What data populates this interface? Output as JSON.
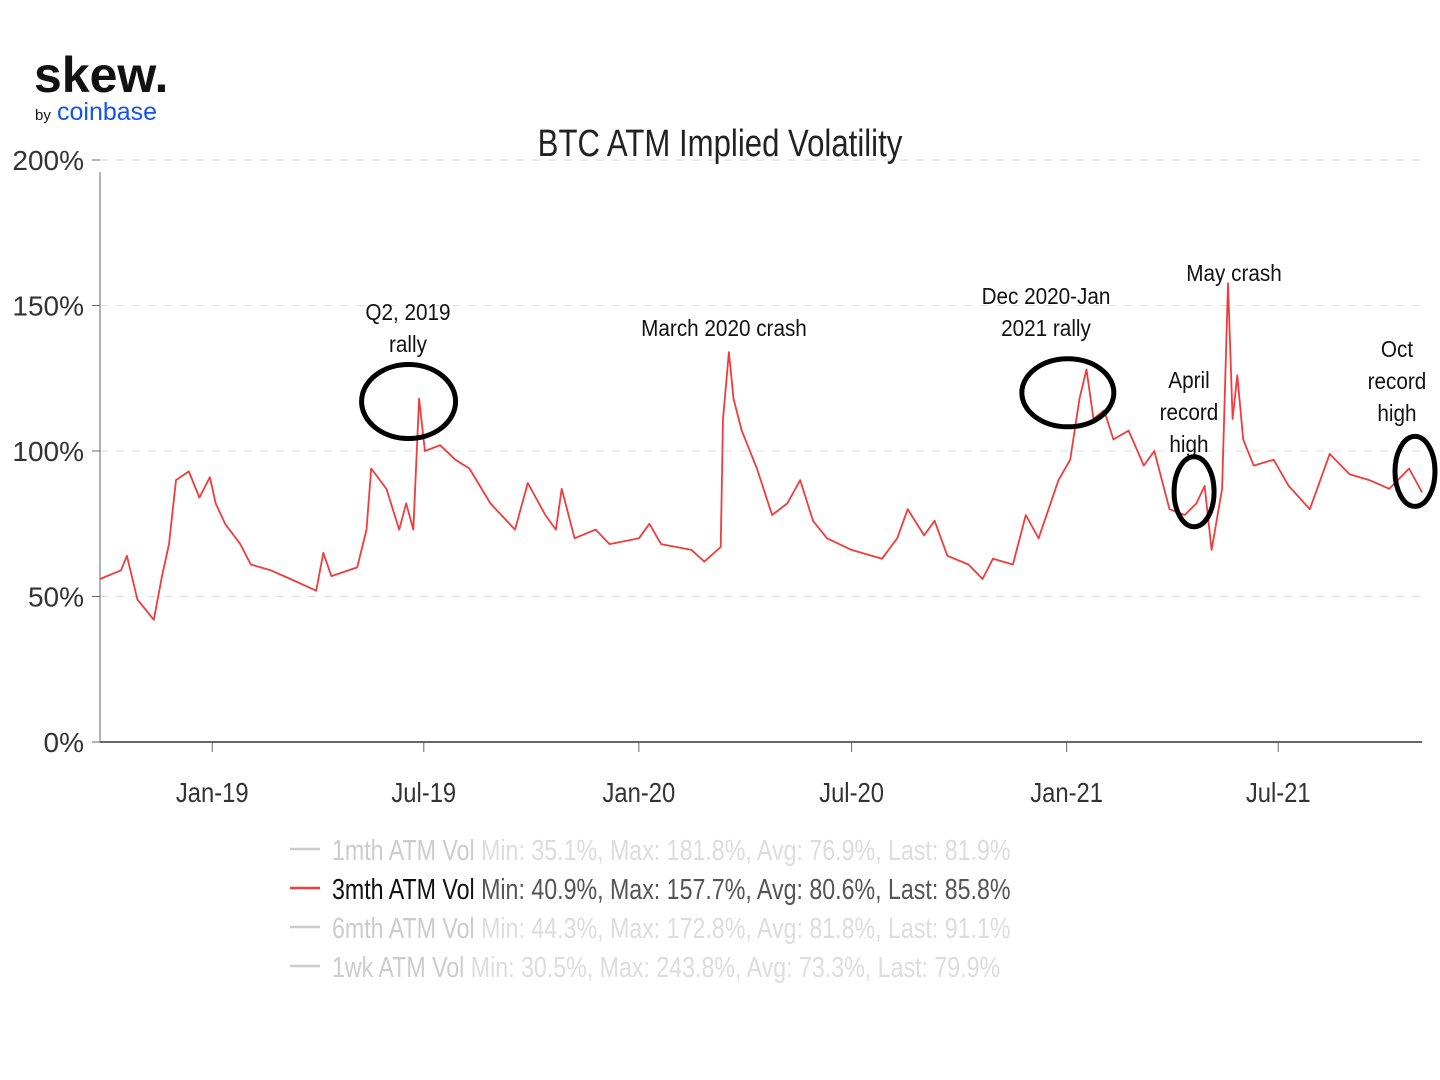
{
  "logo": {
    "brand": "skew.",
    "by": "by",
    "parent": "coinbase",
    "dot_color": "#f2a900",
    "parent_color": "#1652f0"
  },
  "chart_data": {
    "type": "line",
    "title": "BTC ATM Implied Volatility",
    "ylim": [
      0,
      200
    ],
    "yticks": [
      0,
      50,
      100,
      150,
      200
    ],
    "ytick_labels": [
      "0%",
      "50%",
      "100%",
      "150%",
      "200%"
    ],
    "xlim": [
      "2018-09-27",
      "2021-11-01"
    ],
    "xticks": [
      "2019-01-01",
      "2019-07-01",
      "2020-01-01",
      "2020-07-01",
      "2021-01-01",
      "2021-07-01"
    ],
    "xtick_labels": [
      "Jan-19",
      "Jul-19",
      "Jan-20",
      "Jul-20",
      "Jan-21",
      "Jul-21"
    ],
    "grid": "horizontal dashed",
    "legend_placement": "bottom",
    "line_color": "#f03c3c",
    "series": [
      {
        "name": "3mth ATM Vol",
        "points": [
          [
            "2018-09-27",
            56
          ],
          [
            "2018-10-15",
            59
          ],
          [
            "2018-10-20",
            64
          ],
          [
            "2018-10-29",
            49
          ],
          [
            "2018-11-12",
            42
          ],
          [
            "2018-11-19",
            57
          ],
          [
            "2018-11-25",
            68
          ],
          [
            "2018-12-01",
            90
          ],
          [
            "2018-12-12",
            93
          ],
          [
            "2018-12-21",
            84
          ],
          [
            "2018-12-30",
            91
          ],
          [
            "2019-01-04",
            82
          ],
          [
            "2019-01-12",
            75
          ],
          [
            "2019-01-25",
            68
          ],
          [
            "2019-02-03",
            61
          ],
          [
            "2019-02-20",
            59
          ],
          [
            "2019-03-09",
            56
          ],
          [
            "2019-03-31",
            52
          ],
          [
            "2019-04-06",
            65
          ],
          [
            "2019-04-13",
            57
          ],
          [
            "2019-05-05",
            60
          ],
          [
            "2019-05-13",
            73
          ],
          [
            "2019-05-17",
            94
          ],
          [
            "2019-05-30",
            87
          ],
          [
            "2019-06-10",
            73
          ],
          [
            "2019-06-16",
            82
          ],
          [
            "2019-06-22",
            73
          ],
          [
            "2019-06-27",
            118
          ],
          [
            "2019-07-02",
            100
          ],
          [
            "2019-07-15",
            102
          ],
          [
            "2019-07-28",
            97
          ],
          [
            "2019-08-09",
            94
          ],
          [
            "2019-08-27",
            82
          ],
          [
            "2019-09-17",
            73
          ],
          [
            "2019-09-28",
            89
          ],
          [
            "2019-10-13",
            78
          ],
          [
            "2019-10-22",
            73
          ],
          [
            "2019-10-27",
            87
          ],
          [
            "2019-11-07",
            70
          ],
          [
            "2019-11-25",
            73
          ],
          [
            "2019-12-07",
            68
          ],
          [
            "2020-01-01",
            70
          ],
          [
            "2020-01-10",
            75
          ],
          [
            "2020-01-20",
            68
          ],
          [
            "2020-02-15",
            66
          ],
          [
            "2020-02-26",
            62
          ],
          [
            "2020-03-11",
            67
          ],
          [
            "2020-03-13",
            111
          ],
          [
            "2020-03-18",
            134
          ],
          [
            "2020-03-22",
            118
          ],
          [
            "2020-03-29",
            107
          ],
          [
            "2020-04-11",
            94
          ],
          [
            "2020-04-24",
            78
          ],
          [
            "2020-05-07",
            82
          ],
          [
            "2020-05-18",
            90
          ],
          [
            "2020-05-29",
            76
          ],
          [
            "2020-06-10",
            70
          ],
          [
            "2020-07-01",
            66
          ],
          [
            "2020-07-27",
            63
          ],
          [
            "2020-08-09",
            70
          ],
          [
            "2020-08-18",
            80
          ],
          [
            "2020-09-01",
            71
          ],
          [
            "2020-09-10",
            76
          ],
          [
            "2020-09-21",
            64
          ],
          [
            "2020-10-09",
            61
          ],
          [
            "2020-10-21",
            56
          ],
          [
            "2020-10-30",
            63
          ],
          [
            "2020-11-16",
            61
          ],
          [
            "2020-11-27",
            78
          ],
          [
            "2020-12-08",
            70
          ],
          [
            "2020-12-25",
            90
          ],
          [
            "2021-01-04",
            97
          ],
          [
            "2021-01-12",
            118
          ],
          [
            "2021-01-18",
            128
          ],
          [
            "2021-01-24",
            111
          ],
          [
            "2021-02-02",
            114
          ],
          [
            "2021-02-10",
            104
          ],
          [
            "2021-02-23",
            107
          ],
          [
            "2021-03-08",
            95
          ],
          [
            "2021-03-17",
            100
          ],
          [
            "2021-03-30",
            80
          ],
          [
            "2021-04-12",
            78
          ],
          [
            "2021-04-22",
            82
          ],
          [
            "2021-04-29",
            88
          ],
          [
            "2021-05-05",
            66
          ],
          [
            "2021-05-14",
            87
          ],
          [
            "2021-05-19",
            157.7
          ],
          [
            "2021-05-23",
            111
          ],
          [
            "2021-05-27",
            126
          ],
          [
            "2021-06-01",
            104
          ],
          [
            "2021-06-10",
            95
          ],
          [
            "2021-06-27",
            97
          ],
          [
            "2021-07-10",
            88
          ],
          [
            "2021-07-28",
            80
          ],
          [
            "2021-08-14",
            99
          ],
          [
            "2021-08-31",
            92
          ],
          [
            "2021-09-17",
            90
          ],
          [
            "2021-10-04",
            87
          ],
          [
            "2021-10-21",
            94
          ],
          [
            "2021-11-01",
            85.8
          ]
        ]
      }
    ],
    "annotations": [
      {
        "lines": [
          "Q2, 2019",
          "rally"
        ],
        "circle_at": [
          "2019-06-18",
          117
        ]
      },
      {
        "lines": [
          "March 2020 crash"
        ]
      },
      {
        "lines": [
          "Dec 2020-Jan",
          "2021 rally"
        ],
        "circle_at": [
          "2021-01-02",
          120
        ]
      },
      {
        "lines": [
          "May crash"
        ]
      },
      {
        "lines": [
          "April",
          "record",
          "high"
        ],
        "circle_at": [
          "2021-04-20",
          86
        ]
      },
      {
        "lines": [
          "Oct",
          "record",
          "high"
        ],
        "circle_at": [
          "2021-10-26",
          93
        ]
      }
    ],
    "legend": [
      {
        "name": "1mth ATM Vol",
        "stats": "Min: 35.1%, Max: 181.8%, Avg: 76.9%, Last: 81.9%",
        "active": false
      },
      {
        "name": "3mth ATM Vol",
        "stats": "Min: 40.9%, Max: 157.7%, Avg: 80.6%, Last: 85.8%",
        "active": true
      },
      {
        "name": "6mth ATM Vol",
        "stats": "Min: 44.3%, Max: 172.8%, Avg: 81.8%, Last: 91.1%",
        "active": false
      },
      {
        "name": "1wk ATM Vol",
        "stats": "Min: 30.5%, Max: 243.8%, Avg: 73.3%, Last: 79.9%",
        "active": false
      }
    ]
  }
}
